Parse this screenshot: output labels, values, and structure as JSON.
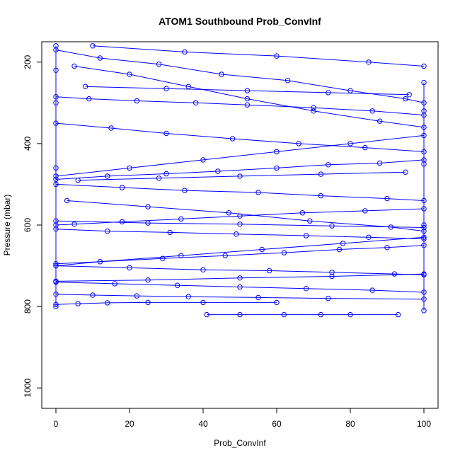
{
  "chart_data": {
    "type": "line",
    "title": "ATOM1 Southbound Prob_ConvInf",
    "xlabel": "Prob_ConvInf",
    "ylabel": "Pressure (mbar)",
    "xlim": [
      0,
      100
    ],
    "ylim": [
      1050,
      150
    ],
    "y_reversed": true,
    "x_ticks": [
      0,
      20,
      40,
      60,
      80,
      100
    ],
    "y_ticks": [
      200,
      400,
      600,
      800,
      1000
    ],
    "grid": false,
    "legend": "none",
    "marker": "open-circle",
    "series_color": "#0000ff",
    "series": [
      {
        "x": [
          0,
          12,
          28,
          45,
          63,
          80,
          95,
          100
        ],
        "y": [
          170,
          190,
          205,
          230,
          245,
          270,
          290,
          300
        ]
      },
      {
        "x": [
          100,
          86,
          70,
          52,
          38,
          22,
          9,
          0
        ],
        "y": [
          330,
          320,
          312,
          305,
          300,
          295,
          290,
          285
        ]
      },
      {
        "x": [
          0,
          15,
          30,
          48,
          66,
          84,
          100
        ],
        "y": [
          350,
          362,
          375,
          388,
          400,
          410,
          420
        ]
      },
      {
        "x": [
          100,
          88,
          74,
          60,
          44,
          30,
          14,
          0
        ],
        "y": [
          440,
          448,
          452,
          460,
          468,
          474,
          480,
          488
        ]
      },
      {
        "x": [
          0,
          18,
          35,
          55,
          72,
          90,
          100
        ],
        "y": [
          500,
          508,
          515,
          520,
          528,
          535,
          540
        ]
      },
      {
        "x": [
          100,
          84,
          67,
          50,
          34,
          18,
          5,
          0
        ],
        "y": [
          560,
          565,
          570,
          578,
          585,
          592,
          598,
          600
        ]
      },
      {
        "x": [
          0,
          14,
          31,
          49,
          68,
          85,
          100
        ],
        "y": [
          610,
          615,
          618,
          622,
          626,
          630,
          634
        ]
      },
      {
        "x": [
          100,
          90,
          77,
          62,
          46,
          29,
          12,
          0
        ],
        "y": [
          650,
          655,
          660,
          668,
          675,
          682,
          690,
          695
        ]
      },
      {
        "x": [
          0,
          20,
          40,
          58,
          75,
          92,
          100
        ],
        "y": [
          700,
          705,
          710,
          712,
          716,
          720,
          722
        ]
      },
      {
        "x": [
          0,
          16,
          33,
          50,
          68,
          86,
          100
        ],
        "y": [
          740,
          744,
          748,
          752,
          756,
          760,
          765
        ]
      },
      {
        "x": [
          0,
          10,
          22,
          36,
          55,
          74,
          100
        ],
        "y": [
          770,
          772,
          774,
          776,
          778,
          780,
          782
        ]
      },
      {
        "x": [
          0,
          6,
          14,
          25,
          40,
          60
        ],
        "y": [
          795,
          793,
          791,
          790,
          790,
          790
        ]
      },
      {
        "x": [
          41,
          50,
          62,
          72,
          80,
          93
        ],
        "y": [
          820,
          820,
          820,
          820,
          820,
          820
        ]
      },
      {
        "x": [
          5,
          20,
          36,
          52,
          70,
          88,
          100
        ],
        "y": [
          210,
          230,
          260,
          290,
          320,
          345,
          360
        ]
      },
      {
        "x": [
          100,
          80,
          60,
          40,
          20,
          0
        ],
        "y": [
          380,
          400,
          420,
          440,
          460,
          480
        ]
      },
      {
        "x": [
          3,
          25,
          47,
          69,
          91,
          100
        ],
        "y": [
          540,
          555,
          570,
          590,
          605,
          615
        ]
      },
      {
        "x": [
          100,
          78,
          56,
          34,
          12,
          0
        ],
        "y": [
          630,
          645,
          660,
          675,
          690,
          700
        ]
      },
      {
        "x": [
          8,
          30,
          52,
          74,
          96
        ],
        "y": [
          260,
          265,
          270,
          275,
          280
        ]
      },
      {
        "x": [
          95,
          72,
          50,
          28,
          6
        ],
        "y": [
          470,
          475,
          480,
          485,
          490
        ]
      },
      {
        "x": [
          0,
          25,
          50,
          75,
          100
        ],
        "y": [
          590,
          595,
          598,
          602,
          606
        ]
      },
      {
        "x": [
          100,
          75,
          50,
          25,
          0
        ],
        "y": [
          720,
          726,
          730,
          735,
          738
        ]
      },
      {
        "x": [
          10,
          35,
          60,
          85,
          100
        ],
        "y": [
          160,
          175,
          185,
          200,
          210
        ]
      },
      {
        "x": [
          0,
          0,
          0,
          0,
          0
        ],
        "y": [
          160,
          220,
          300,
          460,
          800
        ]
      },
      {
        "x": [
          100,
          100,
          100,
          100,
          100
        ],
        "y": [
          250,
          320,
          450,
          600,
          810
        ]
      }
    ]
  }
}
